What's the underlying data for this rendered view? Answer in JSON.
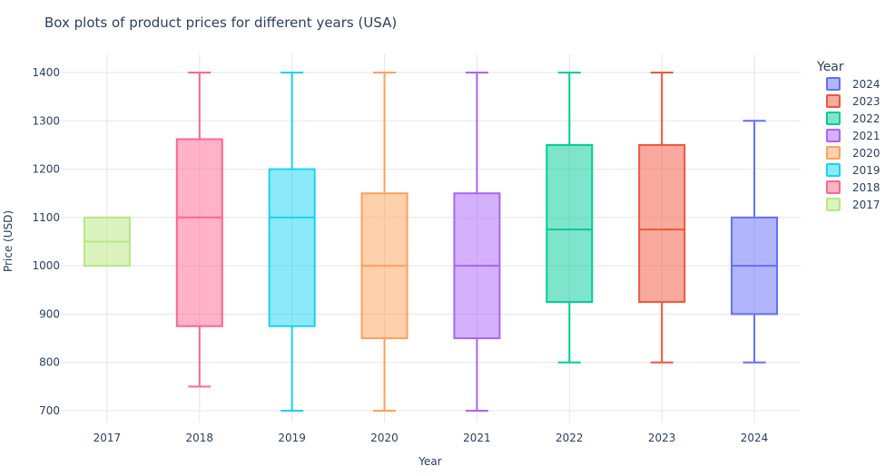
{
  "chart_data": {
    "type": "box",
    "title": "Box plots of product prices for different years (USA)",
    "xlabel": "Year",
    "ylabel": "Price (USD)",
    "ylim": [
      670,
      1440
    ],
    "yticks": [
      700,
      800,
      900,
      1000,
      1100,
      1200,
      1300,
      1400
    ],
    "grid": true,
    "legend": {
      "title": "Year",
      "placement": "right",
      "order": [
        "2024",
        "2023",
        "2022",
        "2021",
        "2020",
        "2019",
        "2018",
        "2017"
      ]
    },
    "categories": [
      "2017",
      "2018",
      "2019",
      "2020",
      "2021",
      "2022",
      "2023",
      "2024"
    ],
    "series": [
      {
        "name": "2017",
        "color": "#B6E880",
        "min": 1000,
        "q1": 1000,
        "median": 1050,
        "q3": 1100,
        "max": 1100
      },
      {
        "name": "2018",
        "color": "#FF6692",
        "min": 750,
        "q1": 875,
        "median": 1100,
        "q3": 1262,
        "max": 1400
      },
      {
        "name": "2019",
        "color": "#19D3F3",
        "min": 700,
        "q1": 875,
        "median": 1100,
        "q3": 1200,
        "max": 1400
      },
      {
        "name": "2020",
        "color": "#FFA15A",
        "min": 700,
        "q1": 850,
        "median": 1000,
        "q3": 1150,
        "max": 1400
      },
      {
        "name": "2021",
        "color": "#AB63FA",
        "min": 700,
        "q1": 850,
        "median": 1000,
        "q3": 1150,
        "max": 1400
      },
      {
        "name": "2022",
        "color": "#00CC96",
        "min": 800,
        "q1": 925,
        "median": 1075,
        "q3": 1250,
        "max": 1400
      },
      {
        "name": "2023",
        "color": "#EF553B",
        "min": 800,
        "q1": 925,
        "median": 1075,
        "q3": 1250,
        "max": 1400
      },
      {
        "name": "2024",
        "color": "#636EFA",
        "min": 800,
        "q1": 900,
        "median": 1000,
        "q3": 1100,
        "max": 1300
      }
    ]
  }
}
